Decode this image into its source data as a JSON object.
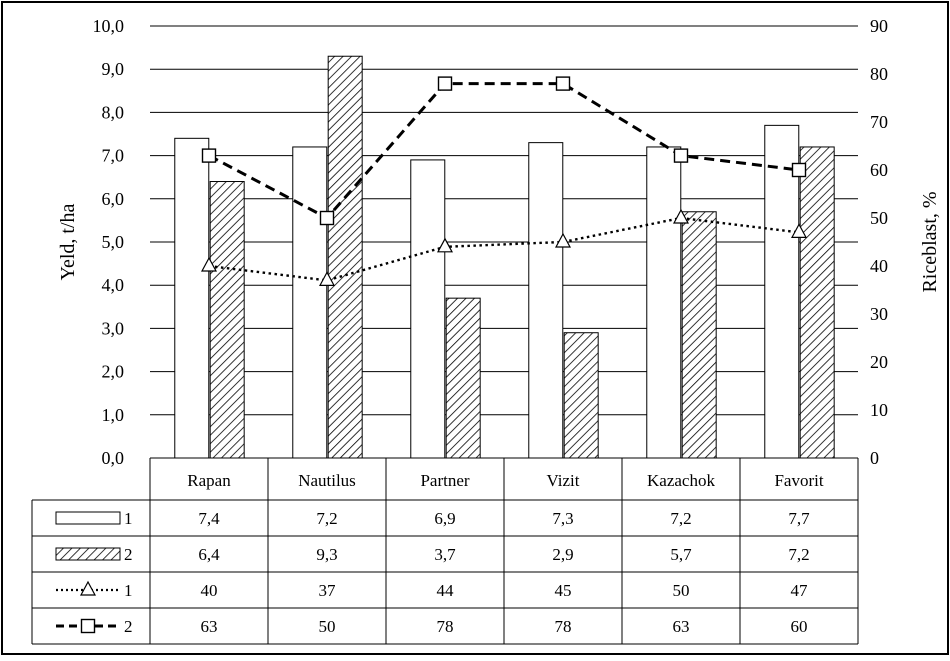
{
  "chart_data": {
    "type": "bar",
    "categories": [
      "Rapan",
      "Nautilus",
      "Partner",
      "Vizit",
      "Kazachok",
      "Favorit"
    ],
    "ylabel": "Yeld, t/ha",
    "y2label": "Riceblast, %",
    "ylim": [
      0,
      10
    ],
    "y2lim": [
      0,
      90
    ],
    "yticks": [
      "0,0",
      "1,0",
      "2,0",
      "3,0",
      "4,0",
      "5,0",
      "6,0",
      "7,0",
      "8,0",
      "9,0",
      "10,0"
    ],
    "y2ticks": [
      "0",
      "10",
      "20",
      "30",
      "40",
      "50",
      "60",
      "70",
      "80",
      "90"
    ],
    "grid": true,
    "legend": "data-table",
    "series": [
      {
        "name": "1",
        "kind": "bar",
        "axis": "left",
        "fill": "white",
        "values": [
          7.4,
          7.2,
          6.9,
          7.3,
          7.2,
          7.7
        ],
        "labels": [
          "7,4",
          "7,2",
          "6,9",
          "7,3",
          "7,2",
          "7,7"
        ]
      },
      {
        "name": "2",
        "kind": "bar",
        "axis": "left",
        "fill": "hatched",
        "values": [
          6.4,
          9.3,
          3.7,
          2.9,
          5.7,
          7.2
        ],
        "labels": [
          "6,4",
          "9,3",
          "3,7",
          "2,9",
          "5,7",
          "7,2"
        ]
      },
      {
        "name": "1",
        "kind": "line",
        "axis": "right",
        "style": "dotted",
        "marker": "triangle",
        "values": [
          40,
          37,
          44,
          45,
          50,
          47
        ],
        "labels": [
          "40",
          "37",
          "44",
          "45",
          "50",
          "47"
        ]
      },
      {
        "name": "2",
        "kind": "line",
        "axis": "right",
        "style": "dashed",
        "marker": "square",
        "values": [
          63,
          50,
          78,
          78,
          63,
          60
        ],
        "labels": [
          "63",
          "50",
          "78",
          "78",
          "63",
          "60"
        ]
      }
    ],
    "colors": {
      "line": "#000000",
      "bar_fill": "#ffffff",
      "grid": "#000000"
    }
  }
}
